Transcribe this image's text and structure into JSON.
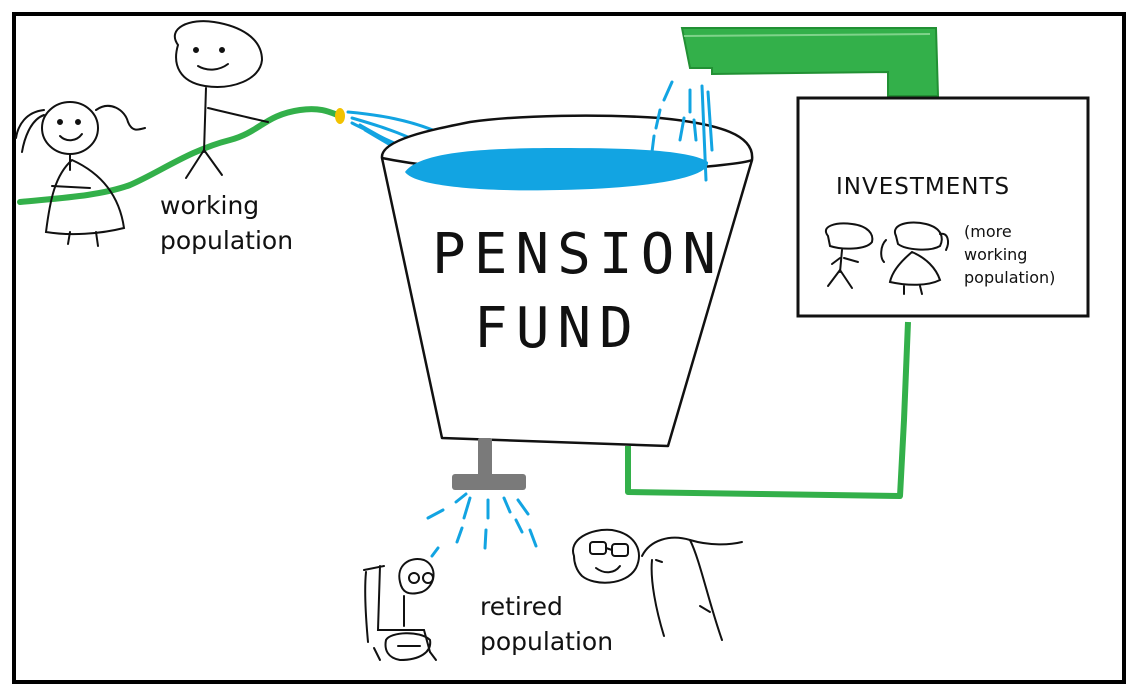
{
  "diagram": {
    "working_label_1": "working",
    "working_label_2": "population",
    "fund_label_1": "PENSION",
    "fund_label_2": "FUND",
    "investments_title": "INVESTMENTS",
    "more_label_1": "(more",
    "more_label_2": "working",
    "more_label_3": "population)",
    "retired_label_1": "retired",
    "retired_label_2": "population"
  },
  "colors": {
    "pipe_green": "#33b04a",
    "water_blue": "#12a4e2",
    "faucet_gray": "#7a7a7a",
    "nozzle_yellow": "#f2c200",
    "ink": "#111111"
  }
}
